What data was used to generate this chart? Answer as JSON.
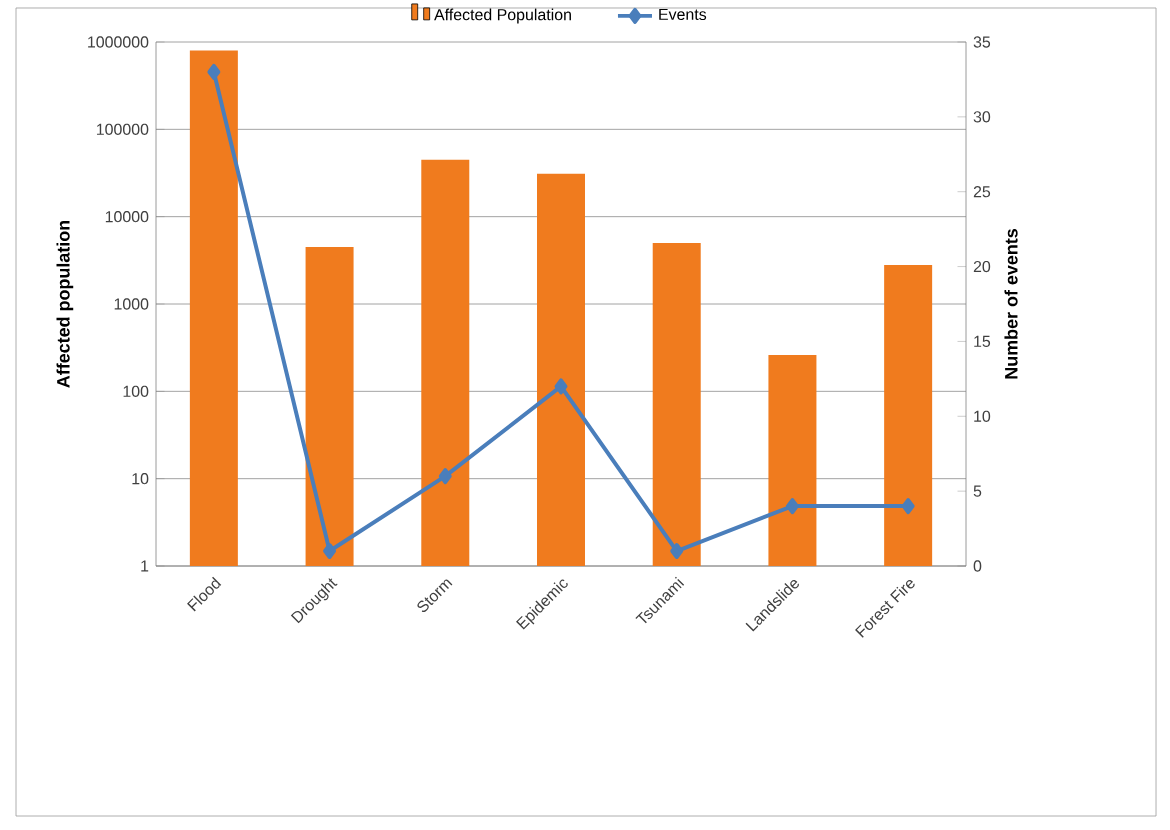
{
  "chart_data": {
    "type": "bar",
    "categories": [
      "Flood",
      "Drought",
      "Storm",
      "Epidemic",
      "Tsunami",
      "Landslide",
      "Forest Fire"
    ],
    "series": [
      {
        "name": "Affected Population",
        "color": "#f07b1e",
        "values": [
          800000,
          4500,
          45000,
          31000,
          5000,
          260,
          2800
        ]
      },
      {
        "name": "Events",
        "type": "line",
        "axis": "y2",
        "color": "#4a7ebb",
        "values": [
          33,
          1,
          6,
          12,
          1,
          4,
          4
        ]
      }
    ],
    "ylabel": "Affected population",
    "y2label": "Number of events",
    "log": "y",
    "ylim": [
      1,
      1000000
    ],
    "yticks": [
      1,
      10,
      100,
      1000,
      10000,
      100000,
      1000000
    ],
    "y2lim": [
      0,
      35
    ],
    "y2ticks": [
      0,
      5,
      10,
      15,
      20,
      25,
      30,
      35
    ],
    "grid": "y",
    "legend": "top",
    "marker": "diamond",
    "line_style": "solid"
  }
}
